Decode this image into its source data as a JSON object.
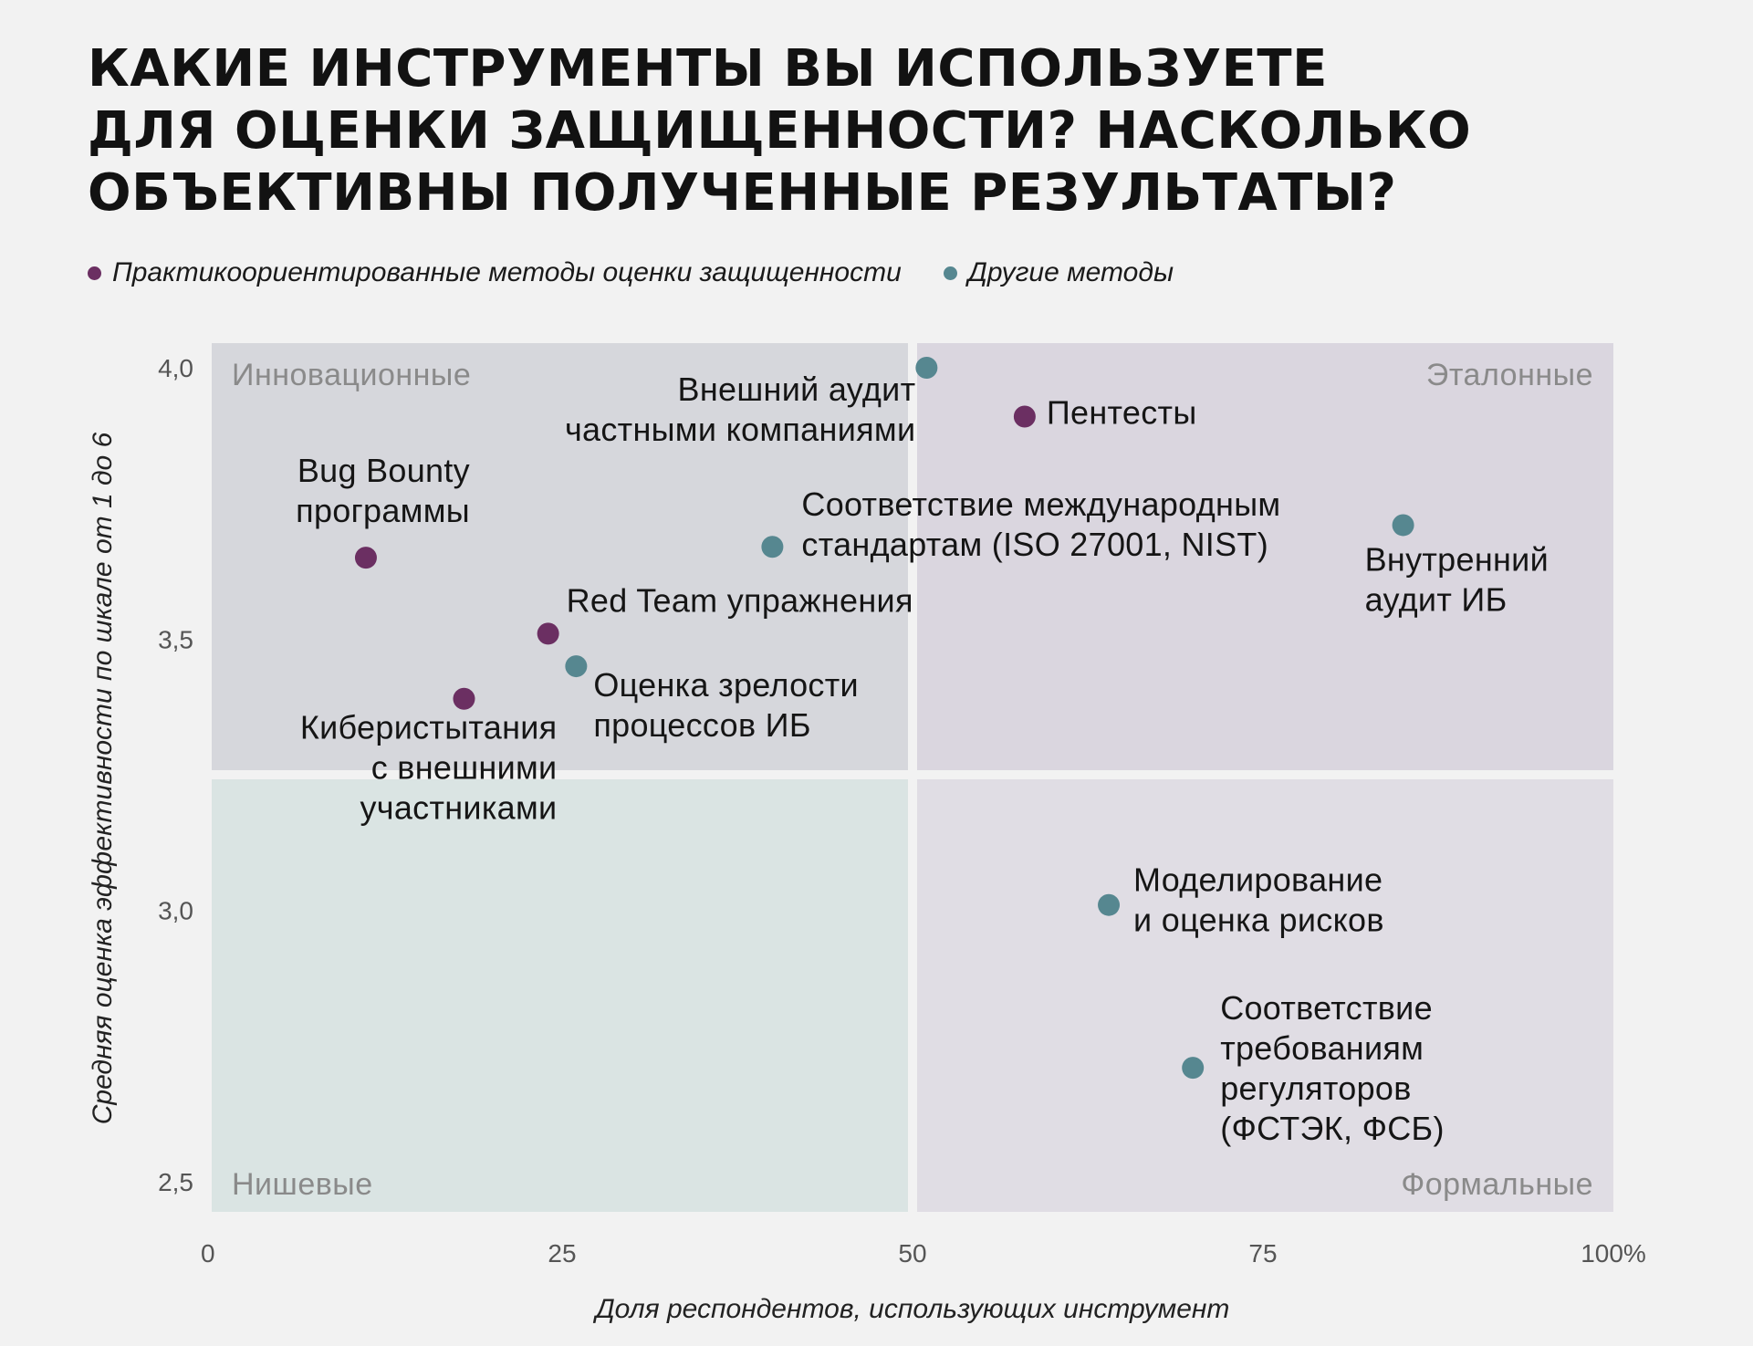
{
  "title_lines": [
    "КАКИЕ ИНСТРУМЕНТЫ ВЫ ИСПОЛЬЗУЕТЕ",
    "ДЛЯ ОЦЕНКИ ЗАЩИЩЕННОСТИ? НАСКОЛЬКО",
    "ОБЪЕКТИВНЫ ПОЛУЧЕННЫЕ РЕЗУЛЬТАТЫ?"
  ],
  "legend": [
    {
      "label": "Практикоориентированные методы оценки защищенности",
      "color": "#6b2f62"
    },
    {
      "label": "Другие методы",
      "color": "#568790"
    }
  ],
  "chart_data": {
    "type": "scatter",
    "title": "КАКИЕ ИНСТРУМЕНТЫ ВЫ ИСПОЛЬЗУЕТЕ ДЛЯ ОЦЕНКИ ЗАЩИЩЕННОСТИ? НАСКОЛЬКО ОБЪЕКТИВНЫ ПОЛУЧЕННЫЕ РЕЗУЛЬТАТЫ?",
    "xlabel": "Доля респондентов, использующих инструмент",
    "ylabel": "Средняя оценка эффективности по шкале от 1 до 6",
    "xlim": [
      0,
      100
    ],
    "ylim": [
      2.5,
      4.0
    ],
    "x_ticks": [
      0,
      25,
      50,
      75,
      100
    ],
    "x_tick_labels": [
      "0",
      "25",
      "50",
      "75",
      "100%"
    ],
    "y_ticks": [
      2.5,
      3.0,
      3.5,
      4.0
    ],
    "y_tick_labels": [
      "2,5",
      "3,0",
      "3,5",
      "4,0"
    ],
    "grid": false,
    "legend_position": "top-left",
    "quadrant_split": {
      "x": 50,
      "y": 3.25
    },
    "quadrants": {
      "top_left": {
        "label": "Инновационные",
        "color": "#d6d7dc"
      },
      "top_right": {
        "label": "Эталонные",
        "color": "#dad6df"
      },
      "bottom_left": {
        "label": "Нишевые",
        "color": "#dae4e3"
      },
      "bottom_right": {
        "label": "Формальные",
        "color": "#e0dde4"
      }
    },
    "series": [
      {
        "name": "Практикоориентированные методы оценки защищенности",
        "color": "#6b2f62",
        "points": [
          {
            "x": 58,
            "y": 3.91,
            "label": [
              "Пентесты"
            ],
            "anchor": "start",
            "dx": 24,
            "dy": 8
          },
          {
            "x": 11,
            "y": 3.65,
            "label": [
              "Bug Bounty",
              "программы"
            ],
            "anchor": "end",
            "dx": 114,
            "dy": -83
          },
          {
            "x": 24,
            "y": 3.51,
            "label": [
              "Red Team упражнения"
            ],
            "anchor": "start",
            "dx": 20,
            "dy": -24
          },
          {
            "x": 18,
            "y": 3.39,
            "label": [
              "Киберистытания",
              "с внешними",
              "участниками"
            ],
            "anchor": "end",
            "dx": 102,
            "dy": 44
          }
        ]
      },
      {
        "name": "Другие методы",
        "color": "#568790",
        "points": [
          {
            "x": 51,
            "y": 4.0,
            "label": [
              "Внешний аудит",
              "частными компаниями"
            ],
            "anchor": "end",
            "dx": -12,
            "dy": 36
          },
          {
            "x": 40,
            "y": 3.67,
            "label": [
              "Соответствие международным",
              "стандартам (ISO 27001, NIST)"
            ],
            "anchor": "start",
            "dx": 32,
            "dy": -34
          },
          {
            "x": 85,
            "y": 3.71,
            "label": [
              "Внутренний",
              "аудит ИБ"
            ],
            "anchor": "start",
            "dx": -42,
            "dy": 50
          },
          {
            "x": 26,
            "y": 3.45,
            "label": [
              "Оценка зрелости",
              "процессов ИБ"
            ],
            "anchor": "start",
            "dx": 19,
            "dy": 33
          },
          {
            "x": 64,
            "y": 3.01,
            "label": [
              "Моделирование",
              "и оценка рисков"
            ],
            "anchor": "start",
            "dx": 27,
            "dy": -15
          },
          {
            "x": 70,
            "y": 2.71,
            "label": [
              "Соответствие",
              "требованиям",
              "регуляторов",
              "(ФСТЭК, ФСБ)"
            ],
            "anchor": "start",
            "dx": 30,
            "dy": -53
          }
        ]
      }
    ]
  }
}
